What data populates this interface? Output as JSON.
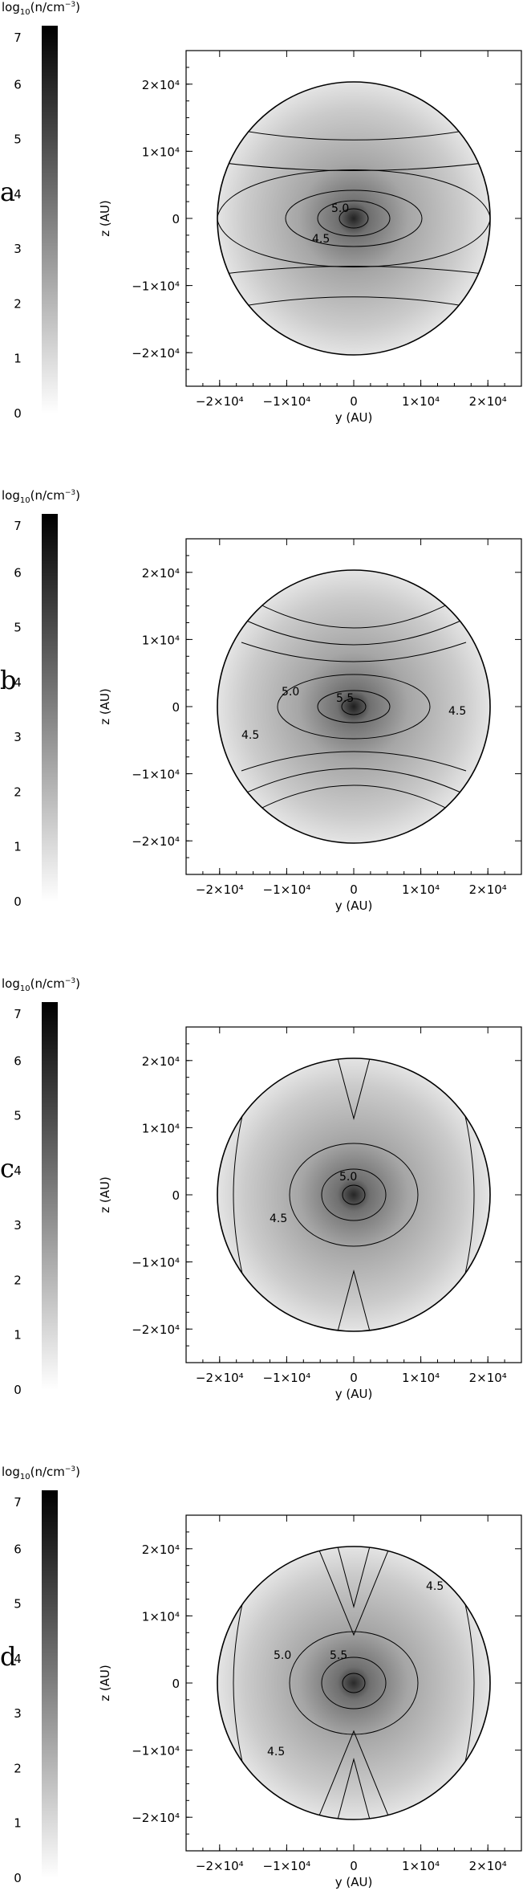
{
  "chart_data": [
    {
      "type": "heatmap",
      "panel_label": "a",
      "colorbar": {
        "title_html": "log10(n/cm-3)",
        "ticks": [
          "0",
          "1",
          "2",
          "3",
          "4",
          "5",
          "6",
          "7"
        ],
        "min": 0,
        "max": 7
      },
      "xlabel": "y (AU)",
      "ylabel": "z (AU)",
      "xlim": [
        -25000,
        25000
      ],
      "ylim": [
        -25000,
        25000
      ],
      "xticks": [
        -20000,
        -10000,
        0,
        10000,
        20000
      ],
      "xtick_labels": [
        "-2x10^4",
        "-1x10^4",
        "0",
        "1x10^4",
        "2x10^4"
      ],
      "ytick_labels": [
        "2x10^4",
        "1x10^4",
        "0",
        "-1x10^4",
        "-2x10^4"
      ],
      "contour_labels": [
        "5.0",
        "4.5"
      ]
    },
    {
      "type": "heatmap",
      "panel_label": "b",
      "colorbar": {
        "title_html": "log10(n/cm-3)",
        "ticks": [
          "0",
          "1",
          "2",
          "3",
          "4",
          "5",
          "6",
          "7"
        ],
        "min": 0,
        "max": 7
      },
      "xlabel": "y (AU)",
      "ylabel": "z (AU)",
      "xlim": [
        -25000,
        25000
      ],
      "ylim": [
        -25000,
        25000
      ],
      "xticks": [
        -20000,
        -10000,
        0,
        10000,
        20000
      ],
      "xtick_labels": [
        "-2x10^4",
        "-1x10^4",
        "0",
        "1x10^4",
        "2x10^4"
      ],
      "ytick_labels": [
        "2x10^4",
        "1x10^4",
        "0",
        "-1x10^4",
        "-2x10^4"
      ],
      "contour_labels": [
        "5.0",
        "5.5",
        "4.5",
        "4.5"
      ]
    },
    {
      "type": "heatmap",
      "panel_label": "c",
      "colorbar": {
        "title_html": "log10(n/cm-3)",
        "ticks": [
          "0",
          "1",
          "2",
          "3",
          "4",
          "5",
          "6",
          "7"
        ],
        "min": 0,
        "max": 7
      },
      "xlabel": "y (AU)",
      "ylabel": "z (AU)",
      "xlim": [
        -25000,
        25000
      ],
      "ylim": [
        -25000,
        25000
      ],
      "xticks": [
        -20000,
        -10000,
        0,
        10000,
        20000
      ],
      "xtick_labels": [
        "-2x10^4",
        "-1x10^4",
        "0",
        "1x10^4",
        "2x10^4"
      ],
      "ytick_labels": [
        "2x10^4",
        "1x10^4",
        "0",
        "-1x10^4",
        "-2x10^4"
      ],
      "contour_labels": [
        "5.0",
        "4.5"
      ]
    },
    {
      "type": "heatmap",
      "panel_label": "d",
      "colorbar": {
        "title_html": "log10(n/cm-3)",
        "ticks": [
          "0",
          "1",
          "2",
          "3",
          "4",
          "5",
          "6",
          "7"
        ],
        "min": 0,
        "max": 7
      },
      "xlabel": "y (AU)",
      "ylabel": "z (AU)",
      "xlim": [
        -25000,
        25000
      ],
      "ylim": [
        -25000,
        25000
      ],
      "xticks": [
        -20000,
        -10000,
        0,
        10000,
        20000
      ],
      "xtick_labels": [
        "-2x10^4",
        "-1x10^4",
        "0",
        "1x10^4",
        "2x10^4"
      ],
      "ytick_labels": [
        "2x10^4",
        "1x10^4",
        "0",
        "-1x10^4",
        "-2x10^4"
      ],
      "contour_labels": [
        "5.0",
        "5.5",
        "4.5",
        "4.5"
      ]
    }
  ]
}
